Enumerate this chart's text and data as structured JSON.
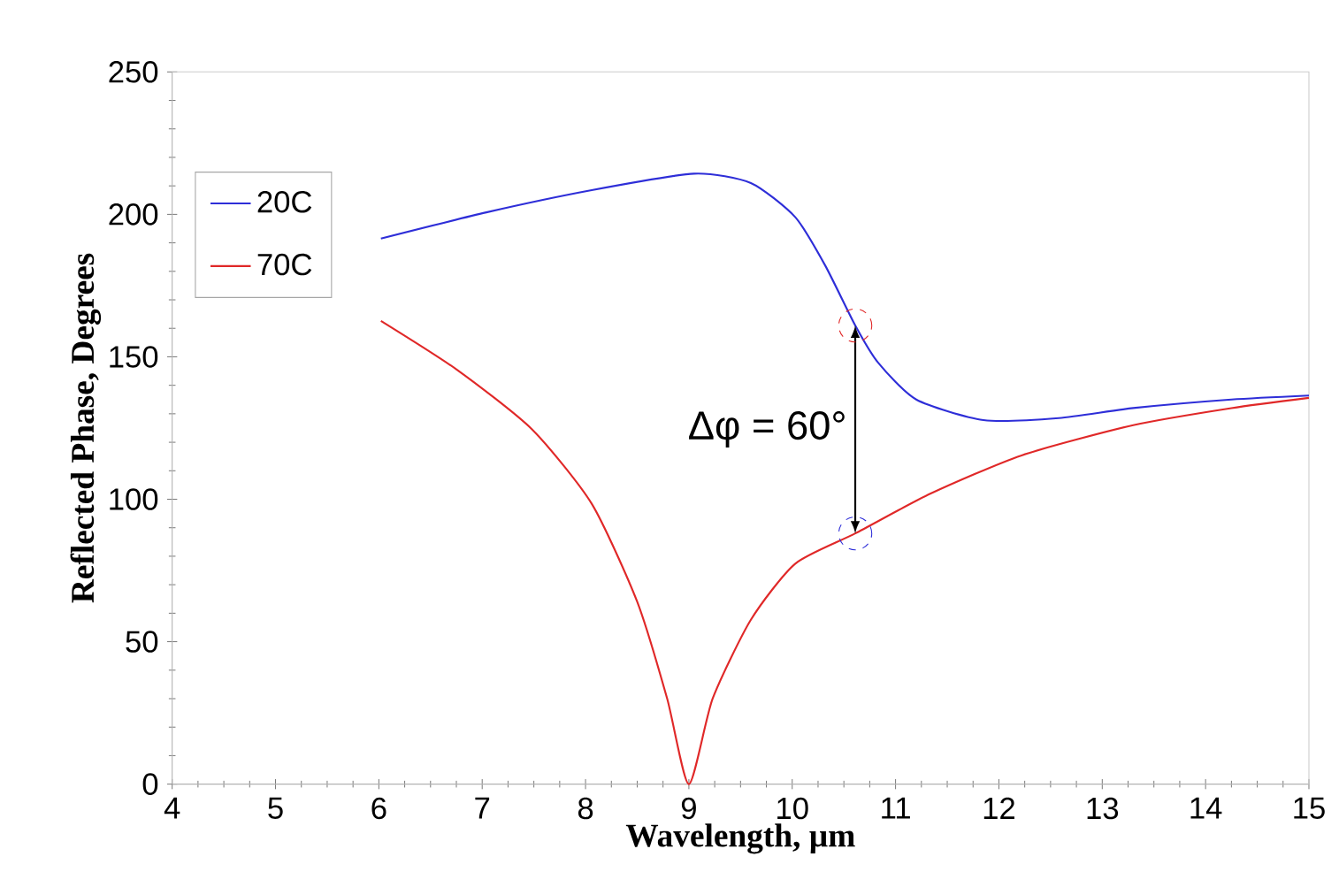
{
  "chart_data": {
    "type": "line",
    "xlabel": "Wavelength, µm",
    "ylabel": "Reflected Phase, Degrees",
    "xlim": [
      4,
      15
    ],
    "xticks": [
      4,
      5,
      6,
      7,
      8,
      9,
      10,
      11,
      12,
      13,
      14,
      15
    ],
    "ylim": [
      0,
      250
    ],
    "yticks": [
      0,
      50,
      100,
      150,
      200,
      250
    ],
    "legend": "top left",
    "grid": false,
    "marker": "none",
    "line_style": "solid",
    "annotations": [
      {
        "text": "Δφ = 60°",
        "x": 10.61,
        "y": 88
      }
    ],
    "series": [
      {
        "name": "20C",
        "color": "#2e2ed8",
        "x": [
          6.02,
          7.04,
          8.06,
          9.05,
          9.6,
          10.03,
          10.32,
          10.61,
          10.83,
          11.2,
          11.85,
          12.58,
          13.3,
          14.25,
          15
        ],
        "values": [
          191.5,
          200.7,
          208.5,
          214.3,
          211,
          199,
          182,
          161,
          148,
          135,
          127.8,
          128.5,
          132,
          135,
          136.4
        ]
      },
      {
        "name": "70C",
        "color": "#e02828",
        "x": [
          6.02,
          6.75,
          7.48,
          8.06,
          8.5,
          8.79,
          9.0,
          9.23,
          9.6,
          10.03,
          10.61,
          11.34,
          12.22,
          13.3,
          14.25,
          15
        ],
        "values": [
          162.6,
          145.6,
          124.6,
          98.4,
          64,
          30,
          0,
          30,
          57.7,
          77.4,
          88,
          102,
          115.4,
          126,
          132,
          135.6
        ]
      }
    ]
  }
}
